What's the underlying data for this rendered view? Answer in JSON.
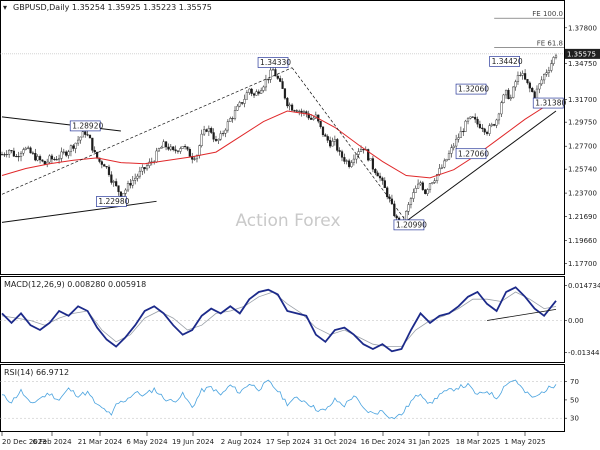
{
  "watermark": "Action Forex",
  "chart_data": [
    {
      "panel": "price",
      "type": "candlestick",
      "title": "GBPUSD,Daily  1.35254  1.35925  1.35223  1.35575",
      "y_ticks": [
        "1.37800",
        "1.34750",
        "1.31700",
        "1.29750",
        "1.27700",
        "1.25740",
        "1.23700",
        "1.21690",
        "1.19660",
        "1.17700"
      ],
      "y_tick_values": [
        1.378,
        1.3475,
        1.317,
        1.2975,
        1.277,
        1.2574,
        1.237,
        1.2169,
        1.1966,
        1.177
      ],
      "ylim": [
        1.168,
        1.4
      ],
      "last_price_label": "1.35575",
      "last_price": 1.35575,
      "x_ticks": [
        "20 Dec 2023",
        "6 Feb 2024",
        "21 Mar 2024",
        "6 May 2024",
        "19 Jun 2024",
        "2 Aug 2024",
        "17 Sep 2024",
        "31 Oct 2024",
        "16 Dec 2024",
        "31 Jan 2025",
        "18 Mar 2025",
        "1 May 2025"
      ],
      "close_path": [
        [
          0,
          1.27
        ],
        [
          3,
          1.274
        ],
        [
          6,
          1.268
        ],
        [
          9,
          1.276
        ],
        [
          12,
          1.271
        ],
        [
          15,
          1.266
        ],
        [
          18,
          1.262
        ],
        [
          20,
          1.266
        ],
        [
          22,
          1.266
        ],
        [
          24,
          1.268
        ],
        [
          27,
          1.272
        ],
        [
          29,
          1.276
        ],
        [
          31,
          1.28
        ],
        [
          33,
          1.285
        ],
        [
          35,
          1.289
        ],
        [
          37,
          1.282
        ],
        [
          39,
          1.27
        ],
        [
          41,
          1.264
        ],
        [
          43,
          1.262
        ],
        [
          45,
          1.255
        ],
        [
          46,
          1.249
        ],
        [
          48,
          1.242
        ],
        [
          50,
          1.236
        ],
        [
          52,
          1.24
        ],
        [
          54,
          1.246
        ],
        [
          56,
          1.25
        ],
        [
          58,
          1.254
        ],
        [
          60,
          1.258
        ],
        [
          62,
          1.262
        ],
        [
          64,
          1.266
        ],
        [
          66,
          1.274
        ],
        [
          68,
          1.278
        ],
        [
          70,
          1.276
        ],
        [
          72,
          1.272
        ],
        [
          74,
          1.275
        ],
        [
          76,
          1.278
        ],
        [
          78,
          1.272
        ],
        [
          80,
          1.268
        ],
        [
          82,
          1.27
        ],
        [
          84,
          1.285
        ],
        [
          86,
          1.292
        ],
        [
          88,
          1.29
        ],
        [
          90,
          1.28
        ],
        [
          92,
          1.285
        ],
        [
          94,
          1.293
        ],
        [
          96,
          1.3
        ],
        [
          98,
          1.306
        ],
        [
          100,
          1.312
        ],
        [
          102,
          1.318
        ],
        [
          104,
          1.326
        ],
        [
          106,
          1.32
        ],
        [
          108,
          1.325
        ],
        [
          110,
          1.33
        ],
        [
          112,
          1.336
        ],
        [
          114,
          1.342
        ],
        [
          116,
          1.334
        ],
        [
          118,
          1.325
        ],
        [
          120,
          1.314
        ],
        [
          122,
          1.31
        ],
        [
          124,
          1.309
        ],
        [
          126,
          1.306
        ],
        [
          128,
          1.305
        ],
        [
          130,
          1.3
        ],
        [
          132,
          1.302
        ],
        [
          134,
          1.292
        ],
        [
          136,
          1.284
        ],
        [
          138,
          1.28
        ],
        [
          140,
          1.28
        ],
        [
          142,
          1.27
        ],
        [
          144,
          1.266
        ],
        [
          146,
          1.262
        ],
        [
          148,
          1.269
        ],
        [
          150,
          1.274
        ],
        [
          152,
          1.276
        ],
        [
          154,
          1.268
        ],
        [
          156,
          1.259
        ],
        [
          158,
          1.254
        ],
        [
          160,
          1.245
        ],
        [
          162,
          1.236
        ],
        [
          164,
          1.225
        ],
        [
          166,
          1.214
        ],
        [
          168,
          1.21
        ],
        [
          170,
          1.22
        ],
        [
          172,
          1.232
        ],
        [
          174,
          1.24
        ],
        [
          176,
          1.246
        ],
        [
          178,
          1.238
        ],
        [
          180,
          1.246
        ],
        [
          182,
          1.25
        ],
        [
          184,
          1.256
        ],
        [
          186,
          1.262
        ],
        [
          188,
          1.27
        ],
        [
          190,
          1.278
        ],
        [
          192,
          1.285
        ],
        [
          194,
          1.292
        ],
        [
          196,
          1.299
        ],
        [
          198,
          1.3
        ],
        [
          200,
          1.296
        ],
        [
          202,
          1.294
        ],
        [
          204,
          1.29
        ],
        [
          206,
          1.294
        ],
        [
          208,
          1.3
        ],
        [
          210,
          1.315
        ],
        [
          212,
          1.322
        ],
        [
          214,
          1.318
        ],
        [
          216,
          1.332
        ],
        [
          218,
          1.34
        ],
        [
          220,
          1.333
        ],
        [
          222,
          1.326
        ],
        [
          224,
          1.32
        ],
        [
          226,
          1.329
        ],
        [
          228,
          1.338
        ],
        [
          230,
          1.344
        ],
        [
          232,
          1.352
        ],
        [
          233,
          1.356
        ]
      ],
      "ma_path": [
        [
          0,
          1.252
        ],
        [
          10,
          1.258
        ],
        [
          20,
          1.262
        ],
        [
          30,
          1.265
        ],
        [
          40,
          1.267
        ],
        [
          50,
          1.263
        ],
        [
          60,
          1.262
        ],
        [
          70,
          1.265
        ],
        [
          80,
          1.268
        ],
        [
          90,
          1.272
        ],
        [
          100,
          1.285
        ],
        [
          110,
          1.298
        ],
        [
          120,
          1.307
        ],
        [
          130,
          1.304
        ],
        [
          140,
          1.293
        ],
        [
          150,
          1.278
        ],
        [
          160,
          1.264
        ],
        [
          170,
          1.252
        ],
        [
          180,
          1.25
        ],
        [
          190,
          1.257
        ],
        [
          200,
          1.27
        ],
        [
          210,
          1.285
        ],
        [
          220,
          1.3
        ],
        [
          230,
          1.313
        ],
        [
          233,
          1.316
        ]
      ],
      "channel_lines": [
        {
          "from": [
            0,
            1.302
          ],
          "to": [
            50,
            1.29
          ]
        },
        {
          "from": [
            0,
            1.212
          ],
          "to": [
            65,
            1.23
          ]
        },
        {
          "from": [
            0,
            1.236
          ],
          "to": [
            122,
            1.344
          ]
        },
        {
          "from": [
            122,
            1.344
          ],
          "to": [
            170,
            1.213
          ]
        },
        {
          "from": [
            170,
            1.213
          ],
          "to": [
            233,
            1.307
          ]
        }
      ],
      "fib_levels": [
        {
          "label": "FE 100.0",
          "value": 1.3862,
          "from_x": 207
        },
        {
          "label": "FE 61.8",
          "value": 1.361,
          "from_x": 207
        }
      ],
      "annotations": [
        {
          "text": "1.28920",
          "x": 35,
          "y": 1.2892
        },
        {
          "text": "1.22980",
          "x": 46,
          "y": 1.2298
        },
        {
          "text": "1.34330",
          "x": 114,
          "y": 1.3433
        },
        {
          "text": "1.20990",
          "x": 164,
          "y": 1.2099
        },
        {
          "text": "1.27060",
          "x": 204,
          "y": 1.2706
        },
        {
          "text": "1.32060",
          "x": 204,
          "y": 1.3206
        },
        {
          "text": "1.34420",
          "x": 216,
          "y": 1.3442
        },
        {
          "text": "1.31380",
          "x": 223,
          "y": 1.3138
        }
      ]
    },
    {
      "panel": "macd",
      "type": "line",
      "title": "MACD(12,26,9)  0.008280  0.005918",
      "y_ticks": [
        "0.014734",
        "0.00",
        "-0.013442"
      ],
      "y_tick_values": [
        0.014734,
        0.0,
        -0.013442
      ],
      "ylim": [
        -0.0175,
        0.0175
      ],
      "macd_path": [
        [
          0,
          0.003
        ],
        [
          4,
          -0.001
        ],
        [
          8,
          0.003
        ],
        [
          12,
          -0.002
        ],
        [
          16,
          -0.004
        ],
        [
          20,
          -0.001
        ],
        [
          24,
          0.004
        ],
        [
          28,
          0.002
        ],
        [
          32,
          0.006
        ],
        [
          36,
          0.004
        ],
        [
          40,
          -0.003
        ],
        [
          44,
          -0.008
        ],
        [
          48,
          -0.011
        ],
        [
          52,
          -0.007
        ],
        [
          56,
          -0.002
        ],
        [
          60,
          0.004
        ],
        [
          64,
          0.006
        ],
        [
          68,
          0.003
        ],
        [
          72,
          -0.002
        ],
        [
          76,
          -0.006
        ],
        [
          80,
          -0.004
        ],
        [
          84,
          0.002
        ],
        [
          88,
          0.005
        ],
        [
          92,
          0.003
        ],
        [
          96,
          0.006
        ],
        [
          100,
          0.003
        ],
        [
          104,
          0.009
        ],
        [
          108,
          0.012
        ],
        [
          112,
          0.013
        ],
        [
          116,
          0.011
        ],
        [
          120,
          0.004
        ],
        [
          124,
          0.003
        ],
        [
          128,
          0.002
        ],
        [
          132,
          -0.006
        ],
        [
          136,
          -0.009
        ],
        [
          140,
          -0.004
        ],
        [
          144,
          -0.003
        ],
        [
          148,
          -0.006
        ],
        [
          152,
          -0.01
        ],
        [
          156,
          -0.012
        ],
        [
          160,
          -0.01
        ],
        [
          164,
          -0.013
        ],
        [
          168,
          -0.012
        ],
        [
          172,
          -0.004
        ],
        [
          176,
          0.003
        ],
        [
          180,
          -0.001
        ],
        [
          184,
          0.002
        ],
        [
          188,
          0.003
        ],
        [
          192,
          0.006
        ],
        [
          196,
          0.01
        ],
        [
          200,
          0.012
        ],
        [
          204,
          0.007
        ],
        [
          208,
          0.004
        ],
        [
          212,
          0.012
        ],
        [
          216,
          0.014
        ],
        [
          220,
          0.01
        ],
        [
          224,
          0.005
        ],
        [
          228,
          0.002
        ],
        [
          233,
          0.0083
        ]
      ],
      "signal_path": [
        [
          0,
          0.002
        ],
        [
          6,
          0.001
        ],
        [
          12,
          0.0
        ],
        [
          18,
          -0.002
        ],
        [
          24,
          0.001
        ],
        [
          30,
          0.003
        ],
        [
          36,
          0.004
        ],
        [
          42,
          -0.004
        ],
        [
          48,
          -0.009
        ],
        [
          54,
          -0.006
        ],
        [
          60,
          0.001
        ],
        [
          66,
          0.004
        ],
        [
          72,
          0.001
        ],
        [
          78,
          -0.004
        ],
        [
          84,
          -0.002
        ],
        [
          90,
          0.003
        ],
        [
          96,
          0.004
        ],
        [
          102,
          0.006
        ],
        [
          108,
          0.01
        ],
        [
          114,
          0.012
        ],
        [
          120,
          0.007
        ],
        [
          126,
          0.003
        ],
        [
          132,
          -0.003
        ],
        [
          138,
          -0.006
        ],
        [
          144,
          -0.004
        ],
        [
          150,
          -0.007
        ],
        [
          156,
          -0.01
        ],
        [
          162,
          -0.011
        ],
        [
          168,
          -0.011
        ],
        [
          174,
          -0.004
        ],
        [
          180,
          0.0
        ],
        [
          186,
          0.002
        ],
        [
          192,
          0.005
        ],
        [
          198,
          0.009
        ],
        [
          204,
          0.009
        ],
        [
          210,
          0.008
        ],
        [
          216,
          0.012
        ],
        [
          222,
          0.009
        ],
        [
          228,
          0.005
        ],
        [
          233,
          0.0059
        ]
      ],
      "trend_line": {
        "from": [
          204,
          -0.0
        ],
        "to": [
          233,
          0.0047
        ]
      }
    },
    {
      "panel": "rsi",
      "type": "line",
      "title": "RSI(14)  66.9712",
      "y_ticks": [
        "70",
        "50",
        "30"
      ],
      "y_tick_values": [
        70,
        50,
        30
      ],
      "ylim": [
        16,
        86
      ],
      "rsi_path": [
        [
          0,
          55
        ],
        [
          4,
          48
        ],
        [
          8,
          60
        ],
        [
          12,
          45
        ],
        [
          16,
          52
        ],
        [
          20,
          57
        ],
        [
          24,
          50
        ],
        [
          28,
          62
        ],
        [
          32,
          55
        ],
        [
          36,
          58
        ],
        [
          40,
          44
        ],
        [
          44,
          38
        ],
        [
          46,
          32
        ],
        [
          48,
          45
        ],
        [
          52,
          50
        ],
        [
          56,
          58
        ],
        [
          60,
          55
        ],
        [
          64,
          62
        ],
        [
          68,
          52
        ],
        [
          72,
          48
        ],
        [
          76,
          56
        ],
        [
          80,
          42
        ],
        [
          84,
          60
        ],
        [
          88,
          64
        ],
        [
          92,
          55
        ],
        [
          96,
          66
        ],
        [
          100,
          58
        ],
        [
          104,
          68
        ],
        [
          108,
          62
        ],
        [
          112,
          70
        ],
        [
          116,
          60
        ],
        [
          120,
          46
        ],
        [
          124,
          52
        ],
        [
          128,
          48
        ],
        [
          132,
          40
        ],
        [
          136,
          38
        ],
        [
          140,
          50
        ],
        [
          144,
          44
        ],
        [
          148,
          55
        ],
        [
          152,
          40
        ],
        [
          156,
          35
        ],
        [
          160,
          38
        ],
        [
          164,
          30
        ],
        [
          168,
          34
        ],
        [
          172,
          48
        ],
        [
          176,
          58
        ],
        [
          180,
          45
        ],
        [
          184,
          56
        ],
        [
          188,
          60
        ],
        [
          192,
          64
        ],
        [
          196,
          66
        ],
        [
          200,
          55
        ],
        [
          204,
          60
        ],
        [
          208,
          52
        ],
        [
          212,
          68
        ],
        [
          216,
          72
        ],
        [
          220,
          58
        ],
        [
          224,
          52
        ],
        [
          228,
          60
        ],
        [
          233,
          66.97
        ]
      ]
    }
  ]
}
